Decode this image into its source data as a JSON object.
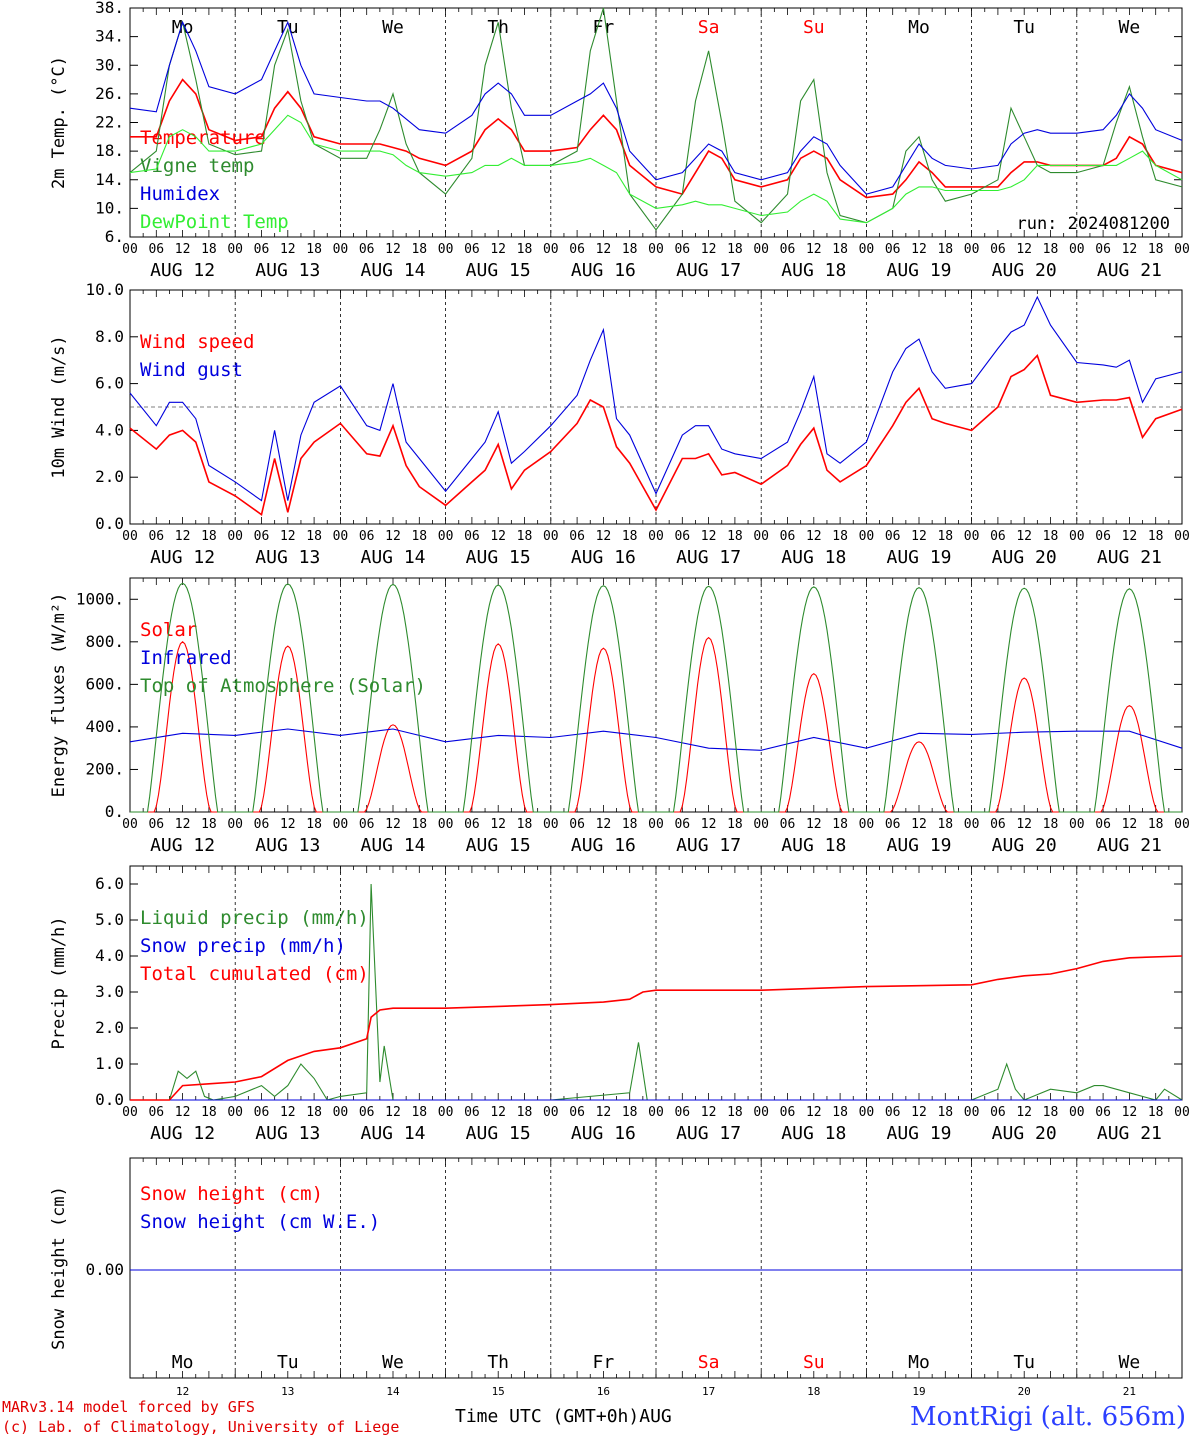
{
  "footer": {
    "credit_line1": "MARv3.14 model forced by GFS",
    "credit_line2": "(c) Lab. of Climatology, University of Liege",
    "x_axis_title": "Time UTC (GMT+0h)AUG",
    "station": "MontRigi (alt. 656m)"
  },
  "chart_data": [
    {
      "type": "line",
      "id": "temperature",
      "ylabel": "2m Temp. (°C)",
      "ylim": [
        6,
        38
      ],
      "yticks": [
        "6.",
        "10.",
        "14.",
        "18.",
        "22.",
        "26.",
        "30.",
        "34.",
        "38."
      ],
      "annotation": "run: 2024081200",
      "weekdays": [
        "Mo",
        "Tu",
        "We",
        "Th",
        "Fr",
        "Sa",
        "Su",
        "Mo",
        "Tu",
        "We"
      ],
      "weekend_color": "#ff0000",
      "date_labels": [
        "AUG 12",
        "AUG 13",
        "AUG 14",
        "AUG 15",
        "AUG 16",
        "AUG 17",
        "AUG 18",
        "AUG 19",
        "AUG 20",
        "AUG 21"
      ],
      "hour_labels": [
        "00",
        "06",
        "12",
        "18"
      ],
      "x_hours": [
        0,
        6,
        9,
        12,
        15,
        18,
        24,
        30,
        33,
        36,
        39,
        42,
        48,
        54,
        57,
        60,
        63,
        66,
        72,
        78,
        81,
        84,
        87,
        90,
        96,
        102,
        105,
        108,
        111,
        114,
        120,
        126,
        129,
        132,
        135,
        138,
        144,
        150,
        153,
        156,
        159,
        162,
        168,
        174,
        177,
        180,
        183,
        186,
        192,
        198,
        201,
        204,
        207,
        210,
        216,
        222,
        225,
        228,
        231,
        234,
        240
      ],
      "series": [
        {
          "name": "Temperature",
          "color": "#ff0000",
          "values": [
            20,
            20,
            25,
            28,
            26,
            21,
            19.5,
            20,
            24,
            26.3,
            24,
            20,
            19,
            19,
            19,
            18.5,
            18,
            17,
            16,
            18,
            21,
            22.5,
            21,
            18,
            18,
            18.5,
            21,
            23,
            21,
            16,
            13,
            12,
            15,
            18,
            17,
            14,
            13,
            14,
            17,
            18,
            17,
            14,
            11.5,
            12,
            14,
            16.5,
            15,
            13,
            13,
            13,
            15,
            16.5,
            16.5,
            16,
            16,
            16,
            17,
            20,
            19,
            16,
            15
          ]
        },
        {
          "name": "Vigne temp",
          "color": "#2e8b2e",
          "values": [
            15,
            18,
            30,
            36,
            28,
            19,
            17.5,
            18,
            30,
            35,
            25,
            19,
            17,
            17,
            21,
            26,
            19,
            15,
            12,
            17,
            30,
            36,
            24,
            16,
            16,
            18,
            32,
            38,
            25,
            12,
            7,
            12,
            25,
            32,
            22,
            11,
            8,
            12,
            25,
            28,
            15,
            9,
            8,
            10,
            18,
            20,
            14,
            11,
            12,
            14,
            24,
            20,
            16,
            15,
            15,
            16,
            22,
            27,
            20,
            14,
            13
          ]
        },
        {
          "name": "Humidex",
          "color": "#0000dd",
          "values": [
            24,
            23.5,
            30,
            36,
            32,
            27,
            26,
            28,
            32,
            36,
            30,
            26,
            25.5,
            25,
            25,
            24,
            22.5,
            21,
            20.5,
            23,
            26,
            27.5,
            26,
            23,
            23,
            25,
            26,
            27.5,
            24,
            18,
            14,
            15,
            17,
            19,
            18,
            15,
            14,
            15,
            18,
            20,
            19,
            16,
            12,
            13,
            16,
            19,
            17,
            16,
            15.5,
            16,
            19,
            20.5,
            21,
            20.5,
            20.5,
            21,
            23,
            26,
            24,
            21,
            19.5
          ]
        },
        {
          "name": "DewPoint Temp",
          "color": "#33ee33",
          "values": [
            15,
            15.5,
            20,
            21,
            20,
            18,
            18,
            19,
            21,
            23,
            22,
            19,
            18,
            18,
            18,
            17.5,
            16,
            15,
            14.5,
            15,
            16,
            16,
            17,
            16,
            16,
            16.5,
            17,
            16,
            15,
            12,
            10,
            10.5,
            11,
            10.5,
            10.5,
            10,
            9,
            9.5,
            11,
            12,
            11,
            8.5,
            8,
            10,
            12,
            13,
            13,
            12.5,
            12.5,
            12.5,
            13,
            14,
            16,
            16,
            16,
            16,
            16,
            17,
            18,
            16,
            14
          ]
        }
      ]
    },
    {
      "type": "line",
      "id": "wind",
      "ylabel": "10m Wind (m/s)",
      "ylim": [
        0,
        10
      ],
      "yticks": [
        "0.0",
        "2.0",
        "4.0",
        "6.0",
        "8.0",
        "10.0"
      ],
      "reference_line": 5,
      "date_labels": [
        "AUG 12",
        "AUG 13",
        "AUG 14",
        "AUG 15",
        "AUG 16",
        "AUG 17",
        "AUG 18",
        "AUG 19",
        "AUG 20",
        "AUG 21"
      ],
      "hour_labels": [
        "00",
        "06",
        "12",
        "18"
      ],
      "x_hours": [
        0,
        6,
        9,
        12,
        15,
        18,
        24,
        30,
        33,
        36,
        39,
        42,
        48,
        54,
        57,
        60,
        63,
        66,
        72,
        78,
        81,
        84,
        87,
        90,
        96,
        102,
        105,
        108,
        111,
        114,
        120,
        126,
        129,
        132,
        135,
        138,
        144,
        150,
        153,
        156,
        159,
        162,
        168,
        174,
        177,
        180,
        183,
        186,
        192,
        198,
        201,
        204,
        207,
        210,
        216,
        222,
        225,
        228,
        231,
        234,
        240
      ],
      "series": [
        {
          "name": "Wind speed",
          "color": "#ff0000",
          "values": [
            4.1,
            3.2,
            3.8,
            4,
            3.5,
            1.8,
            1.2,
            0.4,
            2.8,
            0.5,
            2.8,
            3.5,
            4.3,
            3,
            2.9,
            4.2,
            2.5,
            1.6,
            0.8,
            1.8,
            2.3,
            3.4,
            1.5,
            2.3,
            3.1,
            4.3,
            5.3,
            5,
            3.3,
            2.6,
            0.6,
            2.8,
            2.8,
            3,
            2.1,
            2.2,
            1.7,
            2.5,
            3.4,
            4.1,
            2.3,
            1.8,
            2.5,
            4.2,
            5.2,
            5.8,
            4.5,
            4.3,
            4,
            5,
            6.3,
            6.6,
            7.2,
            5.5,
            5.2,
            5.3,
            5.3,
            5.4,
            3.7,
            4.5,
            4.9
          ]
        },
        {
          "name": "Wind gust",
          "color": "#0000dd",
          "values": [
            5.6,
            4.2,
            5.2,
            5.2,
            4.5,
            2.5,
            1.8,
            1,
            4,
            1,
            3.8,
            5.2,
            5.9,
            4.2,
            4,
            6,
            3.5,
            2.8,
            1.4,
            2.8,
            3.5,
            4.8,
            2.6,
            3.1,
            4.2,
            5.5,
            7,
            8.3,
            4.5,
            3.8,
            1.3,
            3.8,
            4.2,
            4.2,
            3.2,
            3,
            2.8,
            3.5,
            4.8,
            6.3,
            3,
            2.6,
            3.5,
            6.5,
            7.5,
            7.9,
            6.5,
            5.8,
            6,
            7.5,
            8.2,
            8.5,
            9.7,
            8.5,
            6.9,
            6.8,
            6.7,
            7,
            5.2,
            6.2,
            6.5
          ]
        }
      ]
    },
    {
      "type": "line",
      "id": "energy",
      "ylabel": "Energy fluxes (W/m²)",
      "ylim": [
        0,
        1100
      ],
      "yticks": [
        "0.",
        "200.",
        "400.",
        "600.",
        "800.",
        "1000."
      ],
      "date_labels": [
        "AUG 12",
        "AUG 13",
        "AUG 14",
        "AUG 15",
        "AUG 16",
        "AUG 17",
        "AUG 18",
        "AUG 19",
        "AUG 20",
        "AUG 21"
      ],
      "hour_labels": [
        "00",
        "06",
        "12",
        "18"
      ],
      "series": [
        {
          "name": "Solar",
          "color": "#ff0000",
          "daily_peak": [
            800,
            780,
            410,
            790,
            770,
            820,
            650,
            330,
            630,
            500
          ]
        },
        {
          "name": "Infrared",
          "color": "#0000dd",
          "x_hours": [
            0,
            12,
            24,
            36,
            48,
            60,
            72,
            84,
            96,
            108,
            120,
            132,
            144,
            156,
            168,
            180,
            192,
            204,
            216,
            228,
            240
          ],
          "values": [
            330,
            370,
            360,
            390,
            360,
            390,
            330,
            360,
            350,
            380,
            350,
            300,
            290,
            350,
            300,
            370,
            365,
            375,
            380,
            380,
            300
          ]
        },
        {
          "name": "Top of Atmosphere (Solar)",
          "color": "#2e8b2e",
          "daily_peak": [
            1075,
            1072,
            1070,
            1067,
            1064,
            1061,
            1058,
            1055,
            1052,
            1049
          ]
        }
      ]
    },
    {
      "type": "line",
      "id": "precip",
      "ylabel": "Precip (mm/h)",
      "ylim": [
        0,
        6.5
      ],
      "yticks": [
        "0.0",
        "1.0",
        "2.0",
        "3.0",
        "4.0",
        "5.0",
        "6.0"
      ],
      "date_labels": [
        "AUG 12",
        "AUG 13",
        "AUG 14",
        "AUG 15",
        "AUG 16",
        "AUG 17",
        "AUG 18",
        "AUG 19",
        "AUG 20",
        "AUG 21"
      ],
      "hour_labels": [
        "00",
        "06",
        "12",
        "18"
      ],
      "series": [
        {
          "name": "Liquid precip (mm/h)",
          "color": "#2e8b2e",
          "x_hours": [
            0,
            9,
            11,
            13,
            15,
            17,
            19,
            24,
            30,
            33,
            36,
            39,
            42,
            45,
            48,
            54,
            55,
            57,
            58,
            60,
            62,
            66,
            78,
            96,
            114,
            116,
            118,
            120,
            144,
            168,
            192,
            198,
            200,
            202,
            204,
            210,
            216,
            220,
            222,
            228,
            234,
            236,
            240
          ],
          "values": [
            0,
            0,
            0.8,
            0.6,
            0.8,
            0.1,
            0,
            0.1,
            0.4,
            0.1,
            0.4,
            1,
            0.6,
            0,
            0.1,
            0.2,
            6,
            0.5,
            1.5,
            0,
            0,
            0,
            0,
            0,
            0.2,
            1.6,
            0,
            0,
            0,
            0,
            0,
            0.3,
            1,
            0.3,
            0,
            0.3,
            0.2,
            0.4,
            0.4,
            0.2,
            0,
            0.3,
            0
          ]
        },
        {
          "name": "Snow precip (mm/h)",
          "color": "#0000dd",
          "x_hours": [
            0,
            240
          ],
          "values": [
            0,
            0
          ]
        },
        {
          "name": "Total cumulated (cm)",
          "color": "#ff0000",
          "x_hours": [
            0,
            9,
            12,
            18,
            24,
            30,
            36,
            42,
            48,
            54,
            55,
            57,
            60,
            72,
            84,
            96,
            108,
            114,
            117,
            120,
            144,
            168,
            192,
            198,
            204,
            210,
            216,
            222,
            228,
            240
          ],
          "values": [
            0,
            0,
            0.4,
            0.45,
            0.5,
            0.65,
            1.1,
            1.35,
            1.45,
            1.7,
            2.3,
            2.5,
            2.55,
            2.55,
            2.6,
            2.65,
            2.72,
            2.8,
            3.0,
            3.05,
            3.05,
            3.15,
            3.2,
            3.35,
            3.45,
            3.5,
            3.65,
            3.85,
            3.95,
            4.0
          ]
        }
      ]
    },
    {
      "type": "line",
      "id": "snow",
      "ylabel": "Snow height (cm)",
      "yticks": [
        "0.00"
      ],
      "weekdays": [
        "Mo",
        "Tu",
        "We",
        "Th",
        "Fr",
        "Sa",
        "Su",
        "Mo",
        "Tu",
        "We"
      ],
      "day_numbers": [
        "12",
        "13",
        "14",
        "15",
        "16",
        "17",
        "18",
        "19",
        "20",
        "21"
      ],
      "series": [
        {
          "name": "Snow height (cm)",
          "color": "#ff0000",
          "x_hours": [
            0,
            240
          ],
          "values": [
            0,
            0
          ]
        },
        {
          "name": "Snow height (cm W.E.)",
          "color": "#0000dd",
          "x_hours": [
            0,
            240
          ],
          "values": [
            0,
            0
          ]
        }
      ]
    }
  ]
}
